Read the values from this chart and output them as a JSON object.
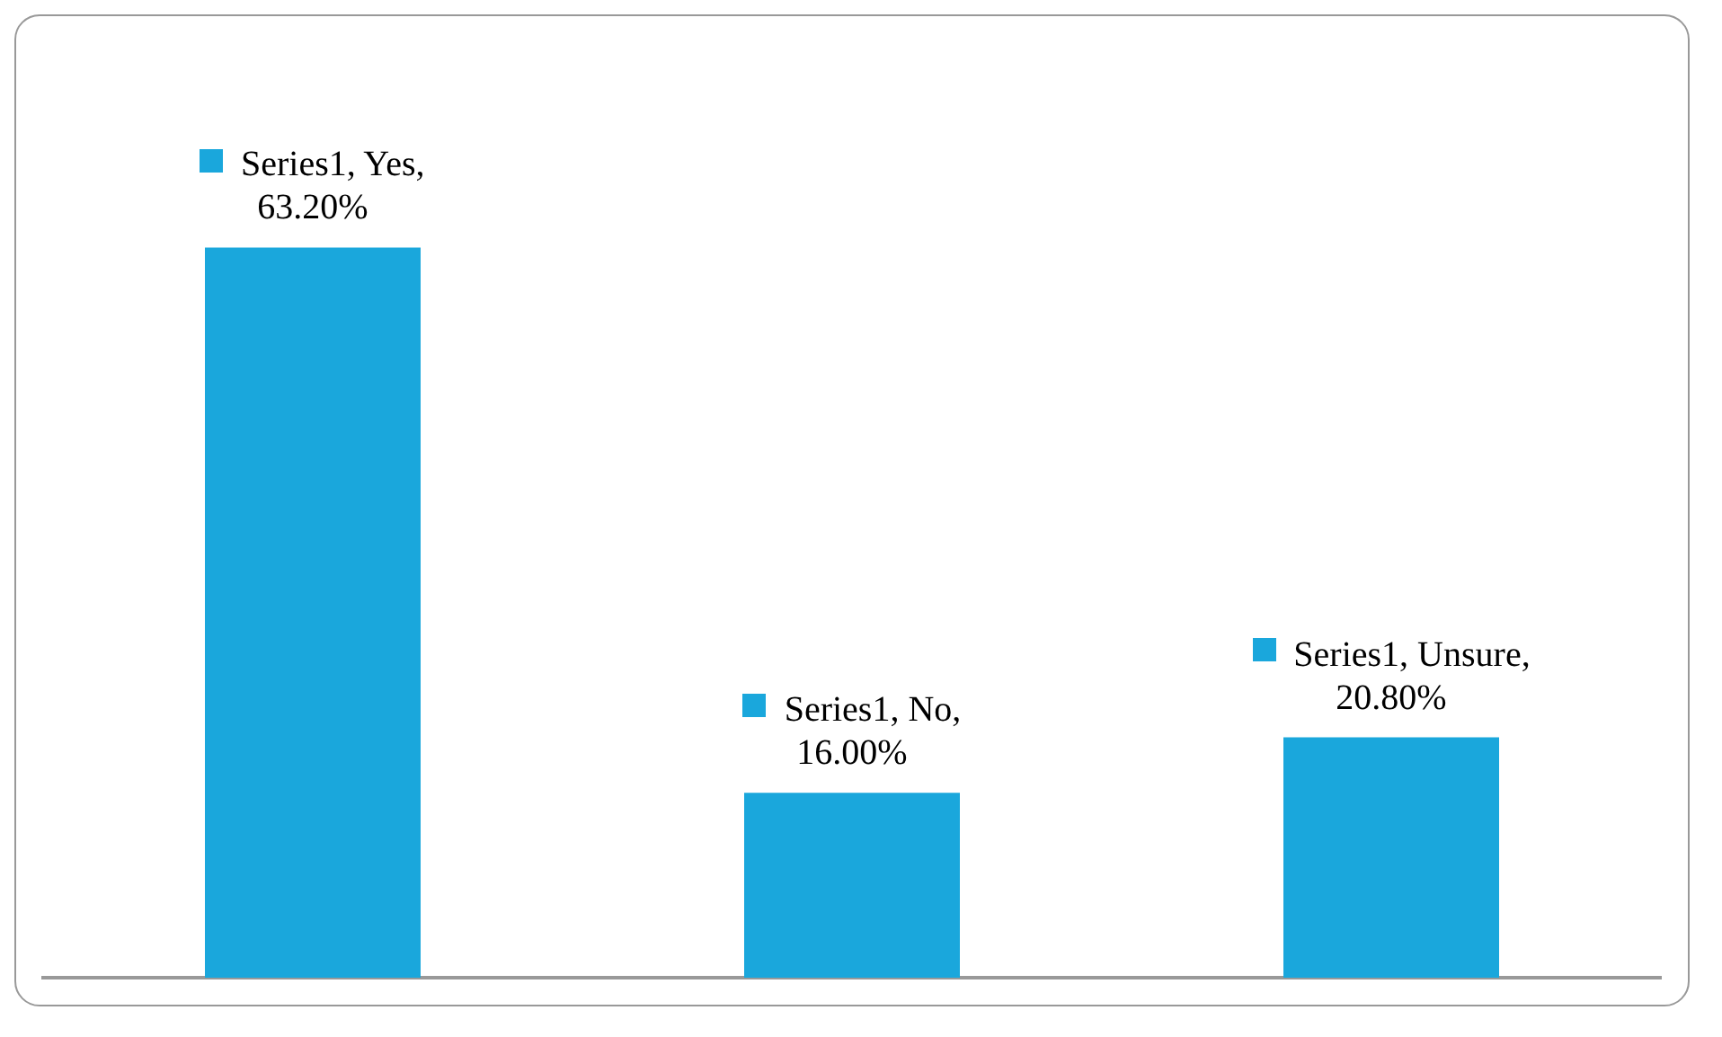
{
  "chart_data": {
    "type": "bar",
    "categories": [
      null,
      null,
      null
    ],
    "series": [
      {
        "color": "#1aa7dc",
        "values": [
          63.2,
          16.0,
          20.8
        ],
        "value_labels": [
          "Series1, Yes, 63.20%",
          "Series1, No, 16.00%",
          "Series1, Unsure, 20.80%"
        ]
      }
    ],
    "tick_labels": false,
    "grid": false,
    "legend": false
  }
}
